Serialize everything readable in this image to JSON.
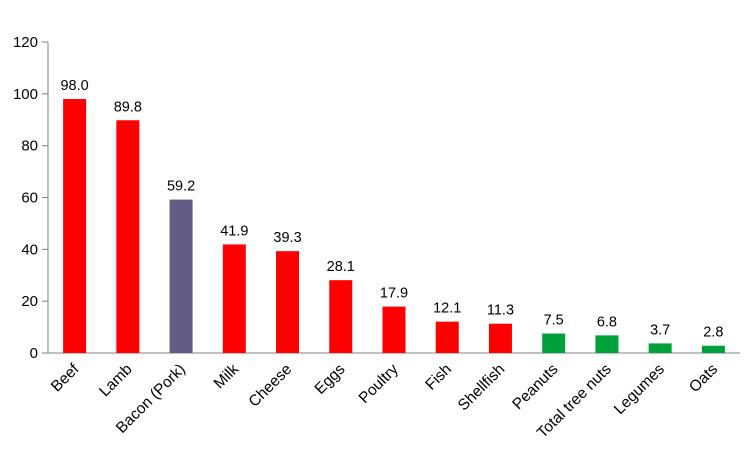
{
  "chart_data": {
    "type": "bar",
    "categories": [
      "Beef",
      "Lamb",
      "Bacon (Pork)",
      "Milk",
      "Cheese",
      "Eggs",
      "Poultry",
      "Fish",
      "Shellfish",
      "Peanuts",
      "Total tree nuts",
      "Legumes",
      "Oats"
    ],
    "values": [
      98.0,
      89.8,
      59.2,
      41.9,
      39.3,
      28.1,
      17.9,
      12.1,
      11.3,
      7.5,
      6.8,
      3.7,
      2.8
    ],
    "value_labels": [
      "98.0",
      "89.8",
      "59.2",
      "41.9",
      "39.3",
      "28.1",
      "17.9",
      "12.1",
      "11.3",
      "7.5",
      "6.8",
      "3.7",
      "2.8"
    ],
    "bar_colors": [
      "#fe0000",
      "#fe0000",
      "#625c87",
      "#fe0000",
      "#fe0000",
      "#fe0000",
      "#fe0000",
      "#fe0000",
      "#fe0000",
      "#00a03a",
      "#00a03a",
      "#00a03a",
      "#00a03a"
    ],
    "title": "",
    "xlabel": "",
    "ylabel": "",
    "ylim": [
      0,
      120
    ],
    "yticks": [
      0,
      20,
      40,
      60,
      80,
      100,
      120
    ],
    "grid": false,
    "legend": false,
    "axis_color": "#808080",
    "text_color": "#000000"
  }
}
